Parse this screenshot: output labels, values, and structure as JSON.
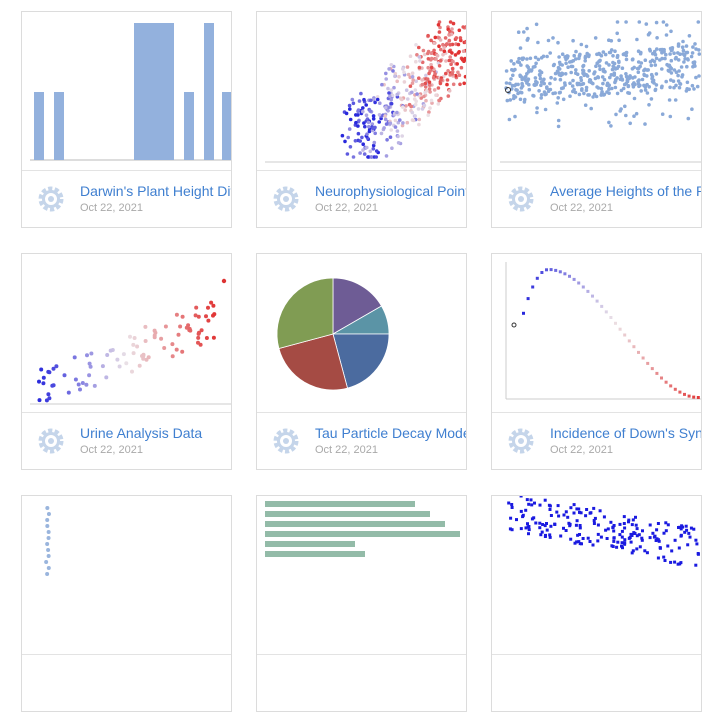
{
  "cards": [
    {
      "title": "Darwin's Plant Height Diffe",
      "date": "Oct 22, 2021"
    },
    {
      "title": "Neurophysiological Point P",
      "date": "Oct 22, 2021"
    },
    {
      "title": "Average Heights of the Ric",
      "date": "Oct 22, 2021"
    },
    {
      "title": "Urine Analysis Data",
      "date": "Oct 22, 2021"
    },
    {
      "title": "Tau Particle Decay Modes",
      "date": "Oct 22, 2021"
    },
    {
      "title": "Incidence of Down's Syndr",
      "date": "Oct 22, 2021"
    }
  ]
}
